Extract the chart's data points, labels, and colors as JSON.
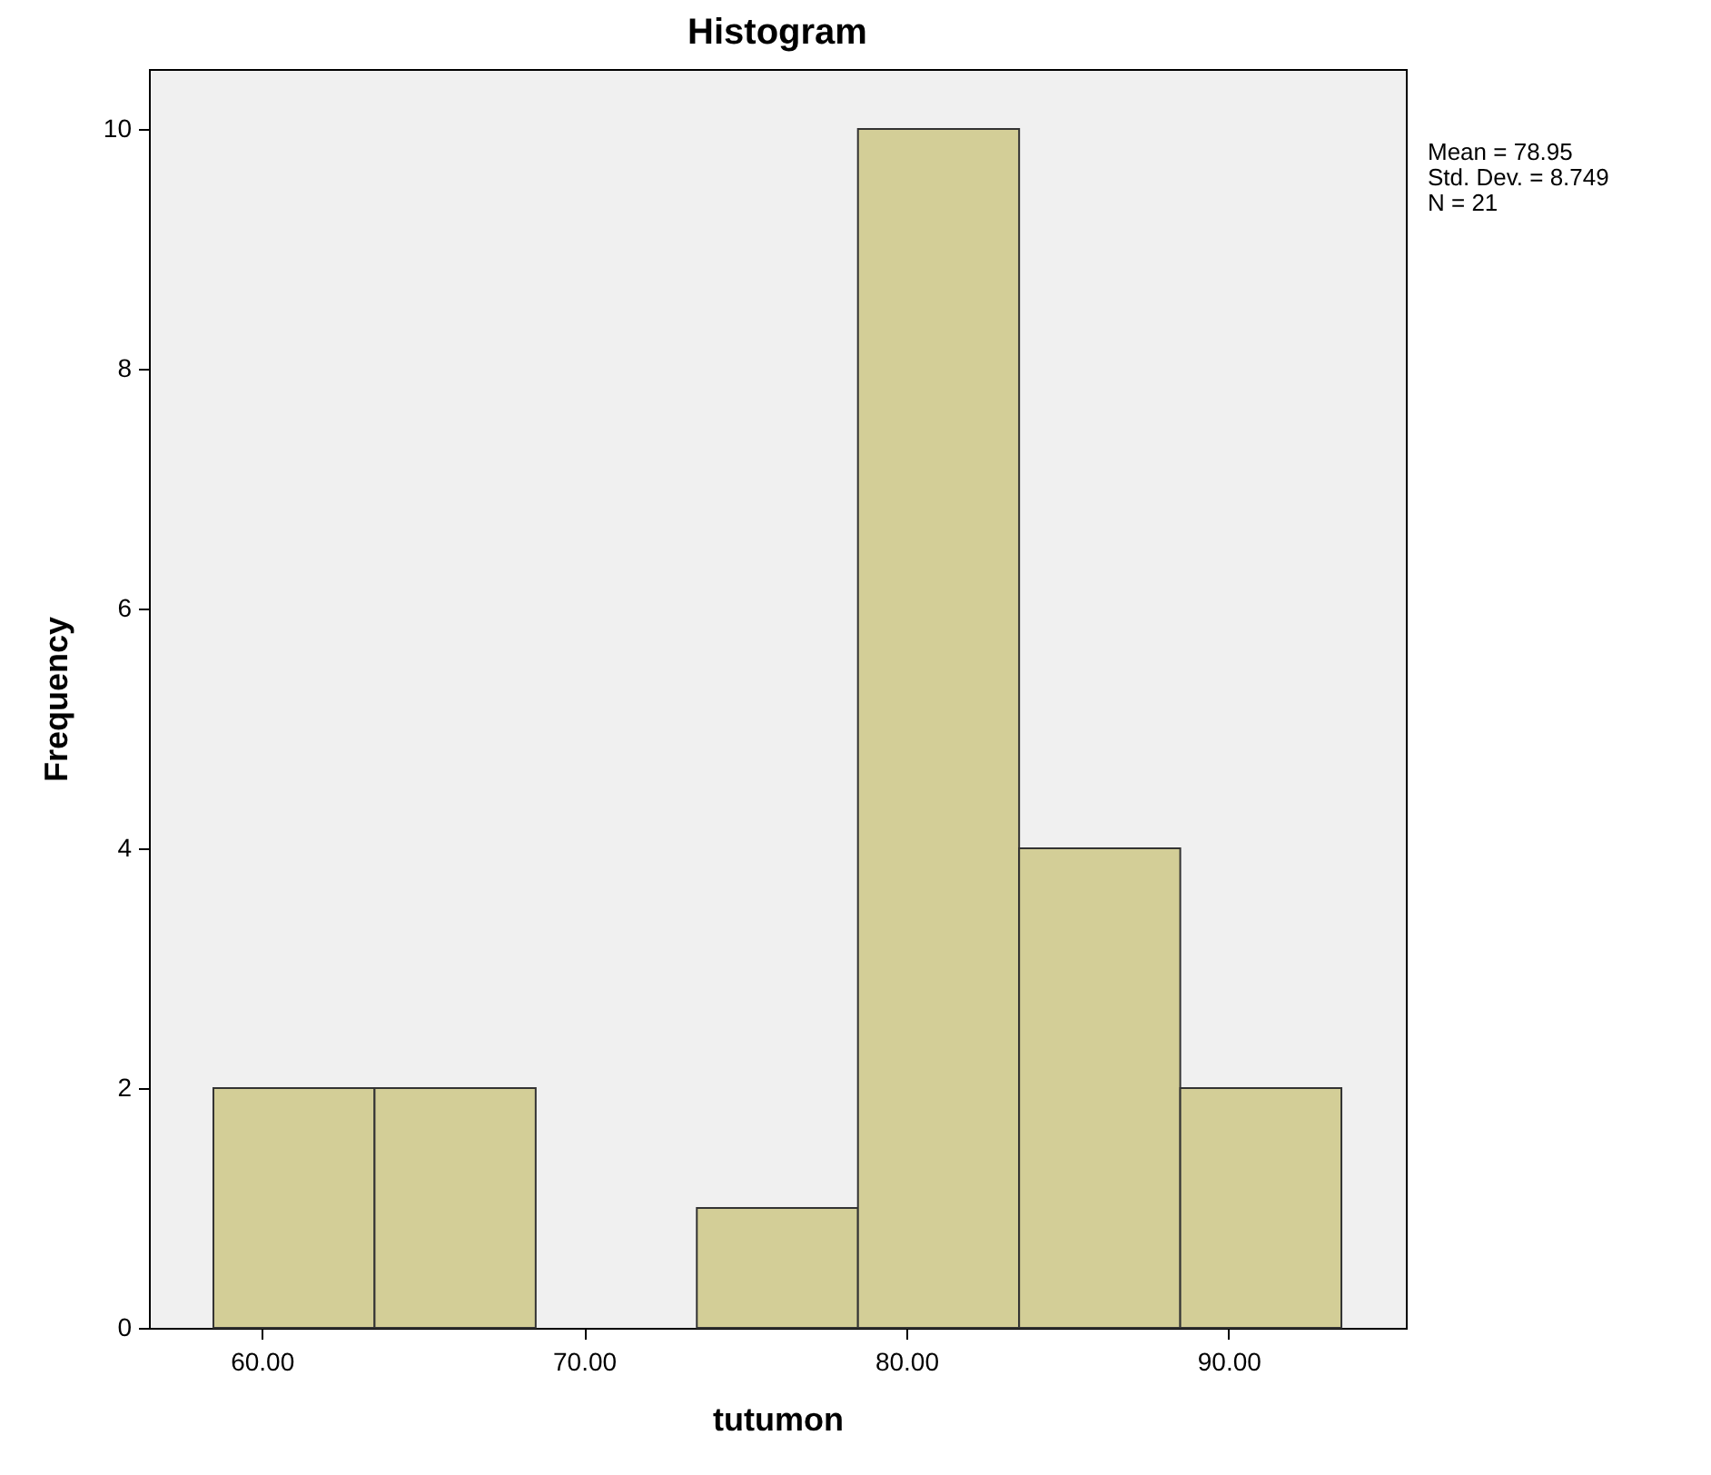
{
  "chart_data": {
    "type": "histogram",
    "title": "Histogram",
    "xlabel": "tutumon",
    "ylabel": "Frequency",
    "bins": [
      58.5,
      63.5,
      68.5,
      73.5,
      78.5,
      83.5,
      88.5,
      93.5
    ],
    "values": [
      2,
      2,
      0,
      1,
      10,
      4,
      2
    ],
    "color": "#d3ce97",
    "xlim": [
      56.5,
      95.5
    ],
    "xticks": [
      {
        "value": 60,
        "label": "60.00"
      },
      {
        "value": 70,
        "label": "70.00"
      },
      {
        "value": 80,
        "label": "80.00"
      },
      {
        "value": 90,
        "label": "90.00"
      }
    ],
    "ylim": [
      0,
      10.5
    ],
    "yticks": [
      0,
      2,
      4,
      6,
      8,
      10
    ],
    "annotations": [
      "Mean = 78.95",
      "Std. Dev. = 8.749",
      "N = 21"
    ]
  }
}
